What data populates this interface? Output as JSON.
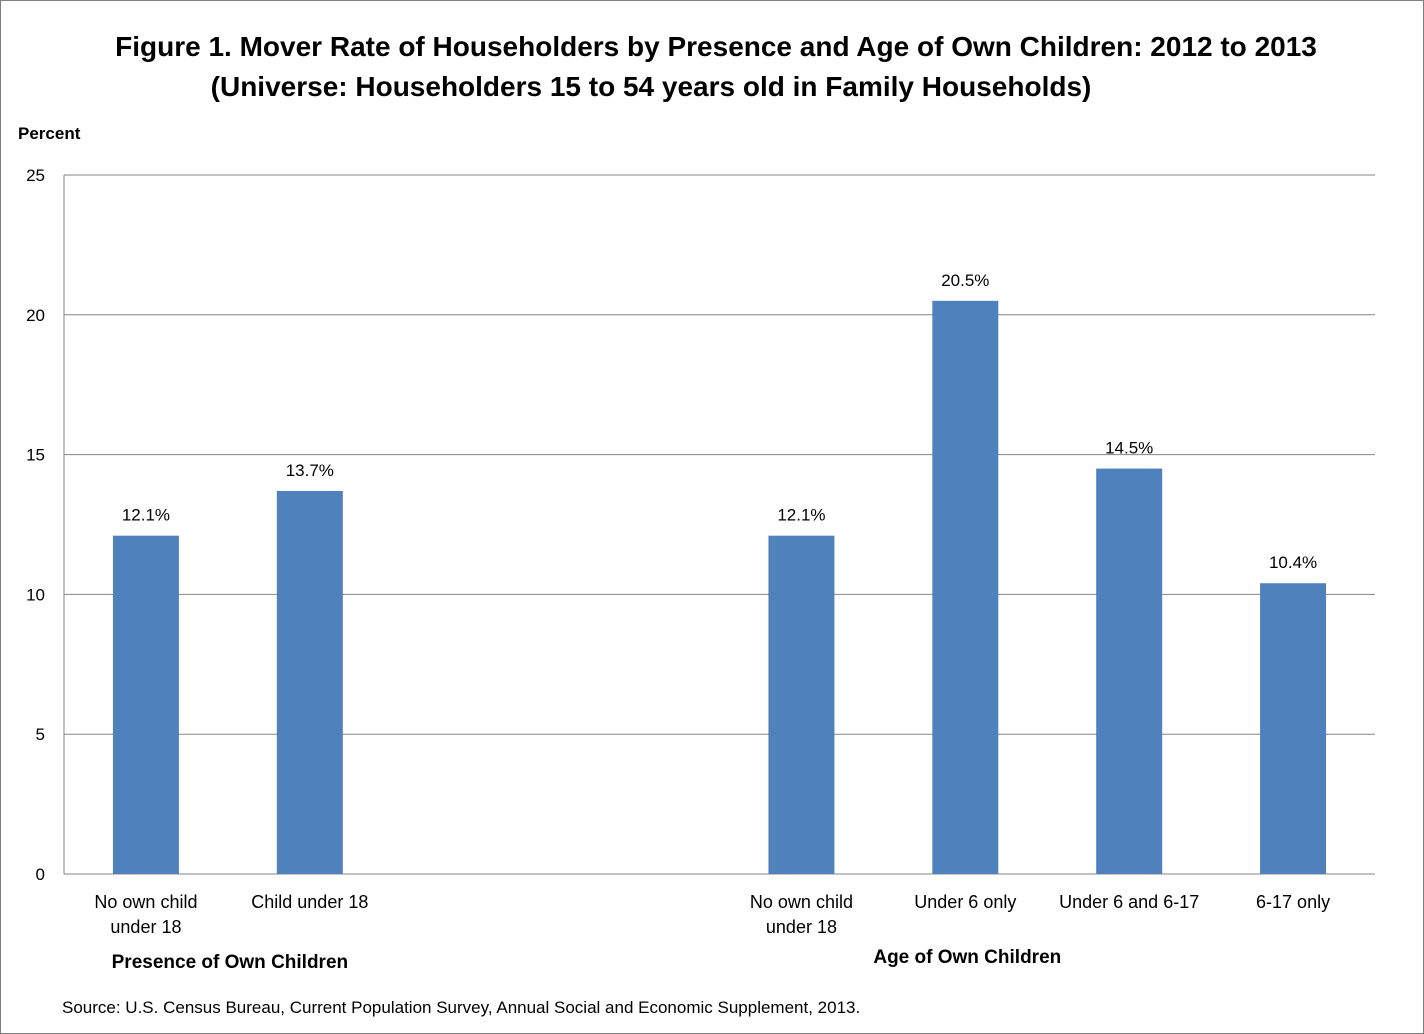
{
  "chart_data": {
    "type": "bar",
    "title": "Figure 1. Mover Rate of Householders by Presence and Age of Own Children: 2012 to 2013",
    "subtitle": "(Universe: Householders 15 to 54 years old in Family Households)",
    "ylabel": "Percent",
    "ylim": [
      0,
      25
    ],
    "yticks": [
      0,
      5,
      10,
      15,
      20,
      25
    ],
    "grid": true,
    "bar_color": "#4f81bd",
    "categories": [
      [
        "No own child",
        "under 18"
      ],
      [
        "Child under 18"
      ],
      [
        ""
      ],
      [
        ""
      ],
      [
        "No own child",
        "under 18"
      ],
      [
        "Under 6 only"
      ],
      [
        "Under 6 and 6-17"
      ],
      [
        "6-17 only"
      ]
    ],
    "values": [
      12.1,
      13.7,
      null,
      null,
      12.1,
      20.5,
      14.5,
      10.4
    ],
    "data_labels": [
      "12.1%",
      "13.7%",
      "",
      "",
      "12.1%",
      "20.5%",
      "14.5%",
      "10.4%"
    ],
    "groups": [
      {
        "label": "Presence of Own Children"
      },
      {
        "label": "Age of Own Children"
      }
    ]
  },
  "source": "Source: U.S. Census Bureau, Current Population Survey, Annual Social and Economic Supplement, 2013."
}
